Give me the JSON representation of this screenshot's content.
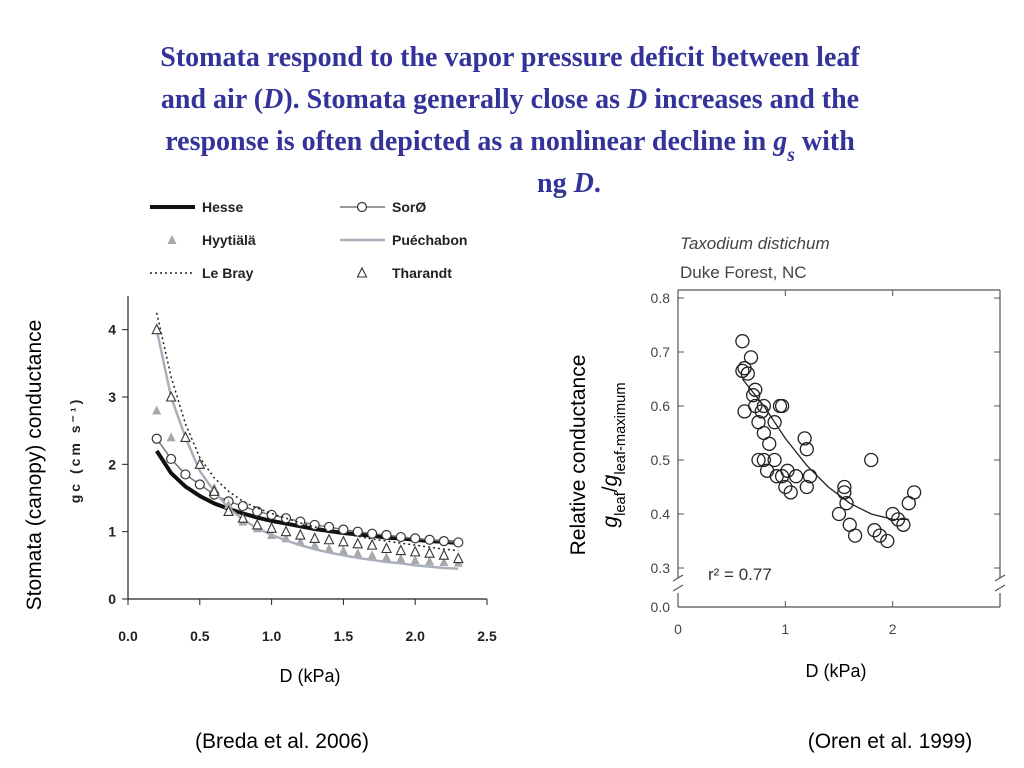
{
  "slide": {
    "title_lines": [
      [
        {
          "text": "Stomata respond to the vapor pressure deficit between leaf"
        }
      ],
      [
        {
          "text": "and air ("
        },
        {
          "text": "D",
          "italic": true
        },
        {
          "text": "). Stomata generally close as "
        },
        {
          "text": "D",
          "italic": true
        },
        {
          "text": " increases and the"
        }
      ],
      [
        {
          "text": "response is often depicted as a nonlinear decline in "
        },
        {
          "text": "g",
          "italic": true
        },
        {
          "text": "s",
          "italic": true,
          "sub": true
        },
        {
          "text": " with"
        }
      ],
      [
        {
          "text": "ng "
        },
        {
          "text": "D",
          "italic": true
        },
        {
          "text": "."
        }
      ]
    ],
    "left_ylabel": "Stomata (canopy) conductance",
    "left_xlabel": "D (kPa)",
    "left_citation": "(Breda et al. 2006)",
    "right_ylabel": "Relative conductance",
    "right_ylabel2": [
      {
        "text": "g",
        "italic": true
      },
      {
        "text": "leaf",
        "sub": true
      },
      {
        "text": "/"
      },
      {
        "text": "g",
        "italic": true
      },
      {
        "text": "leaf-maximum",
        "sub": true
      }
    ],
    "right_xlabel": "D (kPa)",
    "right_citation": "(Oren et al. 1999)"
  },
  "chart_data": [
    {
      "type": "line",
      "ylabel": "gc (cm s⁻¹)",
      "x": [
        0.2,
        0.3,
        0.4,
        0.5,
        0.6,
        0.7,
        0.8,
        0.9,
        1.0,
        1.1,
        1.2,
        1.3,
        1.4,
        1.5,
        1.6,
        1.7,
        1.8,
        1.9,
        2.0,
        2.1,
        2.2,
        2.3
      ],
      "series": [
        {
          "name": "Hesse",
          "color": "#111111",
          "style": "line",
          "width": 4,
          "values": [
            2.2,
            1.87,
            1.67,
            1.53,
            1.42,
            1.34,
            1.27,
            1.21,
            1.16,
            1.12,
            1.08,
            1.04,
            1.01,
            0.98,
            0.96,
            0.94,
            0.91,
            0.9,
            0.88,
            0.86,
            0.85,
            0.83
          ]
        },
        {
          "name": "SorØ",
          "color": "#777777",
          "style": "line",
          "marker": "circle",
          "width": 1.5,
          "values": [
            2.38,
            2.08,
            1.85,
            1.7,
            1.55,
            1.45,
            1.38,
            1.3,
            1.25,
            1.2,
            1.15,
            1.1,
            1.07,
            1.03,
            1.0,
            0.97,
            0.95,
            0.92,
            0.9,
            0.88,
            0.86,
            0.84
          ]
        },
        {
          "name": "Hyytiälä",
          "color": "#a8a8a8",
          "style": "none",
          "marker": "triangle",
          "values": [
            2.8,
            2.4,
            2.4,
            2.0,
            1.65,
            1.4,
            1.15,
            1.05,
            0.95,
            0.9,
            0.85,
            0.8,
            0.75,
            0.72,
            0.68,
            0.65,
            0.62,
            0.6,
            0.58,
            0.56,
            0.55,
            0.54
          ]
        },
        {
          "name": "Puéchabon",
          "color": "#a9b0bc",
          "style": "line",
          "width": 2.5,
          "values": [
            4.0,
            3.0,
            2.4,
            1.9,
            1.6,
            1.35,
            1.18,
            1.05,
            0.95,
            0.87,
            0.8,
            0.74,
            0.69,
            0.65,
            0.61,
            0.58,
            0.55,
            0.53,
            0.5,
            0.48,
            0.46,
            0.45
          ]
        },
        {
          "name": "Le Bray",
          "color": "#222222",
          "style": "dotted",
          "width": 1.5,
          "values": [
            4.25,
            3.3,
            2.6,
            2.1,
            1.8,
            1.6,
            1.45,
            1.35,
            1.27,
            1.2,
            1.13,
            1.07,
            1.02,
            0.97,
            0.93,
            0.89,
            0.86,
            0.83,
            0.8,
            0.77,
            0.74,
            0.72
          ]
        },
        {
          "name": "Tharandt",
          "color": "#333333",
          "style": "none",
          "marker": "triangle-open",
          "values": [
            4.0,
            3.0,
            2.4,
            2.0,
            1.6,
            1.3,
            1.2,
            1.1,
            1.05,
            1.0,
            0.95,
            0.9,
            0.88,
            0.85,
            0.82,
            0.8,
            0.75,
            0.72,
            0.7,
            0.68,
            0.65,
            0.6
          ]
        }
      ],
      "xlim": [
        0,
        2.5
      ],
      "xticks": [
        {
          "value": 0,
          "label": "0.0"
        },
        0.5,
        {
          "value": 1,
          "label": "1.0"
        },
        1.5,
        {
          "value": 2,
          "label": "2.0"
        },
        2.5
      ],
      "ylim": [
        0,
        4.5
      ],
      "yticks": [
        0,
        1,
        2,
        3,
        4
      ]
    },
    {
      "type": "scatter",
      "title": "Taxodium distichum",
      "subtitle": "Duke Forest, NC",
      "annotation": "r² = 0.77",
      "color": "#222222",
      "x": [
        0.6,
        0.62,
        0.6,
        0.65,
        0.68,
        0.62,
        0.7,
        0.72,
        0.72,
        0.75,
        0.78,
        0.8,
        0.8,
        0.75,
        0.8,
        0.85,
        0.83,
        0.9,
        0.9,
        0.95,
        0.97,
        0.92,
        0.97,
        1.0,
        1.02,
        1.05,
        1.1,
        1.18,
        1.2,
        1.2,
        1.23,
        1.5,
        1.55,
        1.57,
        1.6,
        1.65,
        1.8,
        1.83,
        1.88,
        1.95,
        2.0,
        2.05,
        2.1,
        2.15,
        2.2,
        1.55
      ],
      "y": [
        0.72,
        0.67,
        0.665,
        0.66,
        0.69,
        0.59,
        0.62,
        0.63,
        0.6,
        0.57,
        0.59,
        0.6,
        0.55,
        0.5,
        0.5,
        0.53,
        0.48,
        0.5,
        0.57,
        0.6,
        0.6,
        0.47,
        0.47,
        0.45,
        0.48,
        0.44,
        0.47,
        0.54,
        0.52,
        0.45,
        0.47,
        0.4,
        0.44,
        0.42,
        0.38,
        0.36,
        0.5,
        0.37,
        0.36,
        0.35,
        0.4,
        0.39,
        0.38,
        0.42,
        0.44,
        0.45
      ],
      "fit": {
        "x": [
          0.6,
          0.8,
          1.0,
          1.2,
          1.4,
          1.6,
          1.8,
          2.0,
          2.15
        ],
        "y": [
          0.65,
          0.6,
          0.54,
          0.49,
          0.45,
          0.42,
          0.4,
          0.39,
          0.39
        ]
      },
      "xlim": [
        0,
        3
      ],
      "xticks": [
        0,
        1,
        2
      ],
      "ylim": [
        0.3,
        0.8
      ],
      "yticks": [
        {
          "value": 0,
          "label": "0.0"
        },
        0.3,
        0.4,
        0.5,
        0.6,
        0.7,
        0.8
      ]
    }
  ]
}
